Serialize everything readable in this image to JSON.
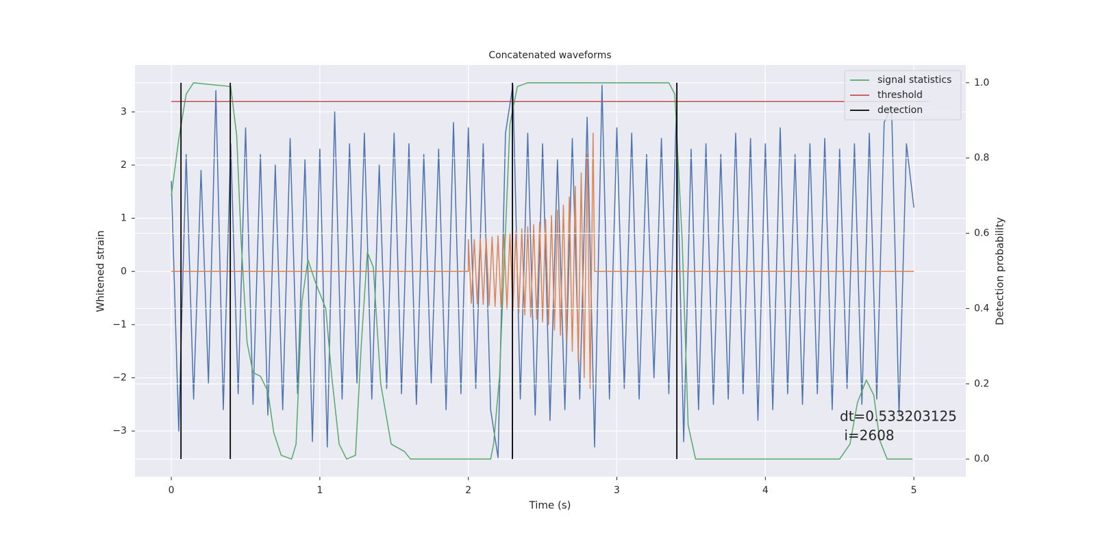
{
  "chart_data": {
    "type": "line",
    "title": "Concatenated waveforms",
    "xlabel": "Time (s)",
    "ylabel": "Whitened strain",
    "y2label": "Detection probability",
    "xlim": [
      -0.245,
      5.35
    ],
    "ylim": [
      -3.86,
      3.88
    ],
    "y2lim": [
      -0.047,
      1.047
    ],
    "xticks": [
      0,
      1,
      2,
      3,
      4,
      5
    ],
    "yticks": [
      {
        "value": -3,
        "label": "−3"
      },
      {
        "value": -2,
        "label": "−2"
      },
      {
        "value": -1,
        "label": "−1"
      },
      0,
      1,
      2,
      3
    ],
    "y2ticks": [
      {
        "value": 0,
        "label": "0.0"
      },
      0.2,
      0.4,
      0.6,
      0.8,
      {
        "value": 1,
        "label": "1.0"
      }
    ],
    "grid": true,
    "legend": "upper right",
    "annotation": [
      "dt=0.533203125",
      " i=2608"
    ],
    "series": [
      {
        "color": "#4c72b0",
        "x": [
          0,
          0.05,
          0.1,
          0.15,
          0.2,
          0.25,
          0.3,
          0.35,
          0.4,
          0.45,
          0.5,
          0.55,
          0.6,
          0.65,
          0.7,
          0.75,
          0.8,
          0.85,
          0.9,
          0.95,
          1,
          1.05,
          1.1,
          1.15,
          1.2,
          1.25,
          1.3,
          1.35,
          1.4,
          1.45,
          1.5,
          1.55,
          1.6,
          1.65,
          1.7,
          1.75,
          1.8,
          1.85,
          1.9,
          1.95,
          2,
          2.05,
          2.1,
          2.15,
          2.2,
          2.25,
          2.3,
          2.35,
          2.4,
          2.45,
          2.5,
          2.55,
          2.6,
          2.65,
          2.7,
          2.75,
          2.8,
          2.85,
          2.9,
          2.95,
          3,
          3.05,
          3.1,
          3.15,
          3.2,
          3.25,
          3.3,
          3.35,
          3.4,
          3.45,
          3.5,
          3.55,
          3.6,
          3.65,
          3.7,
          3.75,
          3.8,
          3.85,
          3.9,
          3.95,
          4,
          4.05,
          4.1,
          4.15,
          4.2,
          4.25,
          4.3,
          4.35,
          4.4,
          4.45,
          4.5,
          4.55,
          4.6,
          4.65,
          4.7,
          4.75,
          4.8,
          4.85,
          4.9,
          4.95,
          5
        ],
        "values": [
          1.7,
          -3.0,
          2.2,
          -2.4,
          1.9,
          -2.1,
          3.4,
          -2.6,
          2.4,
          -2.3,
          2.7,
          -2.5,
          2.2,
          -2.7,
          2.0,
          -2.6,
          2.5,
          -2.3,
          2.1,
          -3.2,
          2.3,
          -3.3,
          3.0,
          -2.4,
          2.4,
          -2.1,
          2.6,
          -2.4,
          2.0,
          -2.2,
          2.6,
          -2.3,
          2.4,
          -2.5,
          2.2,
          -2.1,
          2.3,
          -2.6,
          2.8,
          -2.3,
          2.7,
          -2.2,
          2.4,
          -2.6,
          -3.5,
          2.6,
          3.5,
          -2.4,
          2.6,
          -2.7,
          2.4,
          -2.8,
          2.1,
          -2.6,
          2.5,
          -2.4,
          2.9,
          -3.3,
          3.5,
          -2.4,
          2.7,
          -2.2,
          2.6,
          -2.4,
          2.2,
          -2.0,
          2.5,
          -2.3,
          3.0,
          -3.2,
          2.3,
          -2.6,
          2.4,
          -2.5,
          2.2,
          -2.4,
          2.6,
          -2.3,
          2.5,
          -2.8,
          2.4,
          -2.6,
          2.7,
          -2.3,
          2.2,
          -2.5,
          2.4,
          -2.3,
          2.5,
          -2.6,
          2.3,
          -2.2,
          2.4,
          -2.5,
          2.6,
          -2.4,
          2.8,
          3.1,
          -2.7,
          2.4,
          1.2
        ]
      },
      {
        "color": "#dd8452",
        "x": [
          0,
          2.0,
          2.0,
          2.02,
          2.04,
          2.06,
          2.08,
          2.1,
          2.12,
          2.14,
          2.16,
          2.18,
          2.2,
          2.22,
          2.24,
          2.26,
          2.28,
          2.3,
          2.32,
          2.34,
          2.36,
          2.38,
          2.4,
          2.42,
          2.44,
          2.46,
          2.48,
          2.5,
          2.52,
          2.54,
          2.56,
          2.58,
          2.6,
          2.62,
          2.64,
          2.66,
          2.68,
          2.7,
          2.72,
          2.74,
          2.76,
          2.78,
          2.8,
          2.82,
          2.84,
          2.85,
          5.0
        ],
        "values": [
          0,
          0,
          0.6,
          -0.6,
          0.6,
          -0.61,
          0.62,
          -0.62,
          0.63,
          -0.64,
          0.65,
          -0.66,
          0.67,
          -0.68,
          0.7,
          -0.71,
          0.72,
          -0.74,
          0.76,
          -0.78,
          0.8,
          -0.82,
          0.84,
          -0.86,
          0.88,
          -0.9,
          0.92,
          -0.95,
          0.98,
          -1.0,
          1.05,
          -1.1,
          1.15,
          -1.2,
          1.25,
          -1.3,
          1.4,
          -1.5,
          1.6,
          -1.7,
          1.85,
          -2.0,
          2.2,
          -2.2,
          2.6,
          0,
          0
        ]
      },
      {
        "name": "signal statistics",
        "color": "#55a868",
        "axis": "y2",
        "x": [
          0,
          0.05,
          0.1,
          0.15,
          0.4,
          0.44,
          0.47,
          0.51,
          0.55,
          0.6,
          0.65,
          0.69,
          0.74,
          0.81,
          0.84,
          0.88,
          0.92,
          0.97,
          1.04,
          1.08,
          1.13,
          1.18,
          1.24,
          1.28,
          1.32,
          1.36,
          1.41,
          1.48,
          1.57,
          1.61,
          2.15,
          2.17,
          2.21,
          2.28,
          2.33,
          2.4,
          3.35,
          3.39,
          3.44,
          3.48,
          3.53,
          4.5,
          4.57,
          4.62,
          4.68,
          4.73,
          4.77,
          4.82,
          4.99
        ],
        "values": [
          0.7,
          0.85,
          0.97,
          1.0,
          0.99,
          0.86,
          0.58,
          0.31,
          0.23,
          0.22,
          0.18,
          0.07,
          0.01,
          0,
          0.04,
          0.42,
          0.53,
          0.47,
          0.4,
          0.22,
          0.04,
          0,
          0.01,
          0.31,
          0.55,
          0.51,
          0.2,
          0.04,
          0.02,
          0,
          0,
          0.04,
          0.22,
          0.89,
          0.99,
          1.0,
          1.0,
          0.97,
          0.58,
          0.09,
          0,
          0,
          0.04,
          0.15,
          0.21,
          0.17,
          0.05,
          0,
          0
        ]
      },
      {
        "name": "threshold",
        "color": "#c44e52",
        "axis": "y2",
        "x": [
          0,
          5.1
        ],
        "values": [
          0.95,
          0.95
        ]
      },
      {
        "name": "detection",
        "color": "#000000",
        "axis": "y2",
        "type": "vlines",
        "x": [
          0.065,
          0.397,
          2.297,
          3.404
        ],
        "ymin": 0,
        "ymax": 1
      }
    ]
  }
}
